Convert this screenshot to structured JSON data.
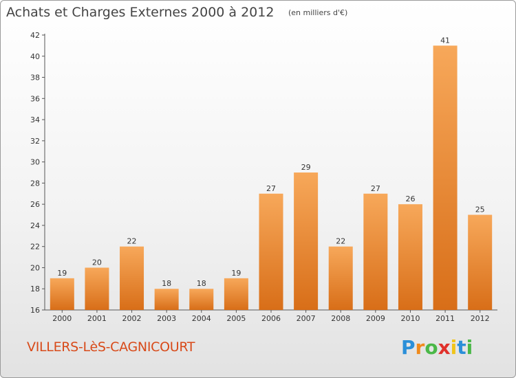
{
  "chart_data": {
    "type": "bar",
    "title": "Achats et Charges Externes 2000 à 2012",
    "subtitle": "(en milliers d'€)",
    "xlabel": "",
    "ylabel": "",
    "categories": [
      "2000",
      "2001",
      "2002",
      "2003",
      "2004",
      "2005",
      "2006",
      "2007",
      "2008",
      "2009",
      "2010",
      "2011",
      "2012"
    ],
    "values": [
      19,
      20,
      22,
      18,
      18,
      19,
      27,
      29,
      22,
      27,
      26,
      41,
      25
    ],
    "ylim": [
      16,
      42
    ],
    "yticks": [
      16,
      18,
      20,
      22,
      24,
      26,
      28,
      30,
      32,
      34,
      36,
      38,
      40,
      42
    ],
    "grid": false,
    "bar_color": "#f0963a"
  },
  "commune": "VILLERS-LèS-CAGNICOURT",
  "logo": {
    "letters": [
      "P",
      "r",
      "o",
      "x",
      "i",
      "t",
      "i"
    ],
    "colors": [
      "#2b8fd8",
      "#f08a1c",
      "#4bb848",
      "#e0312b",
      "#f0c419",
      "#2b8fd8",
      "#4bb848"
    ]
  }
}
